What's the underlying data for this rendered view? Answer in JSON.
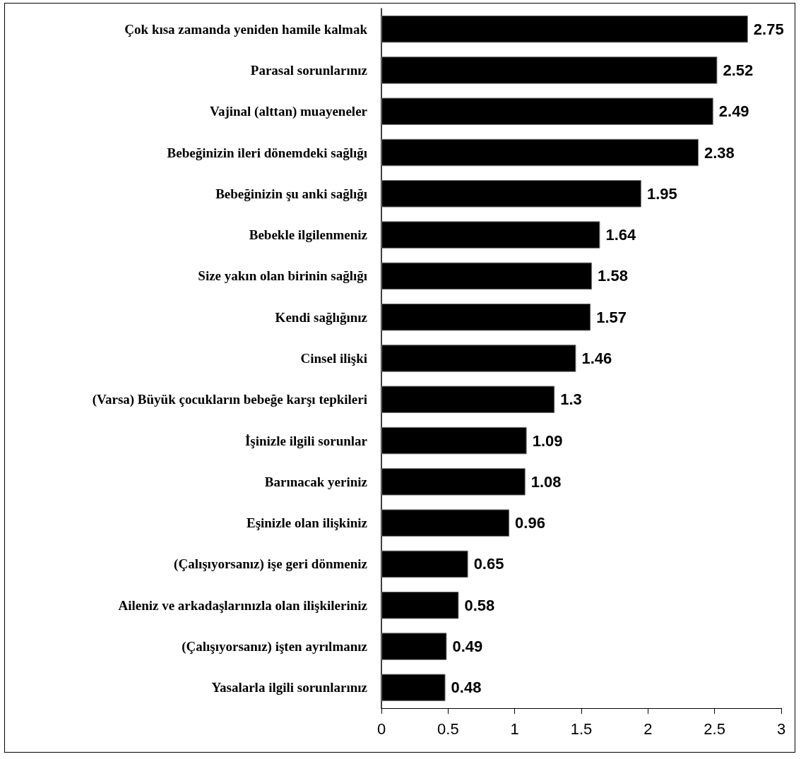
{
  "chart_data": {
    "type": "bar",
    "orientation": "horizontal",
    "categories": [
      "Çok kısa zamanda yeniden hamile kalmak",
      "Parasal sorunlarınız",
      "Vajinal (alttan) muayeneler",
      "Bebeğinizin ileri dönemdeki sağlığı",
      "Bebeğinizin şu anki sağlığı",
      "Bebekle ilgilenmeniz",
      "Size yakın olan birinin sağlığı",
      "Kendi sağlığınız",
      "Cinsel ilişki",
      "(Varsa) Büyük çocukların bebeğe karşı tepkileri",
      "İşinizle ilgili sorunlar",
      "Barınacak yeriniz",
      "Eşinizle olan ilişkiniz",
      "(Çalışıyorsanız) işe geri dönmeniz",
      "Aileniz ve arkadaşlarınızla olan ilişkileriniz",
      "(Çalışıyorsanız) işten ayrılmanız",
      "Yasalarla ilgili sorunlarınız"
    ],
    "values": [
      2.75,
      2.52,
      2.49,
      2.38,
      1.95,
      1.64,
      1.58,
      1.57,
      1.46,
      1.3,
      1.09,
      1.08,
      0.96,
      0.65,
      0.58,
      0.49,
      0.48
    ],
    "color": "#000000",
    "data_labels": true,
    "grid": false,
    "xlim": [
      0,
      3
    ],
    "xticks": [
      0,
      0.5,
      1,
      1.5,
      2,
      2.5,
      3
    ]
  }
}
